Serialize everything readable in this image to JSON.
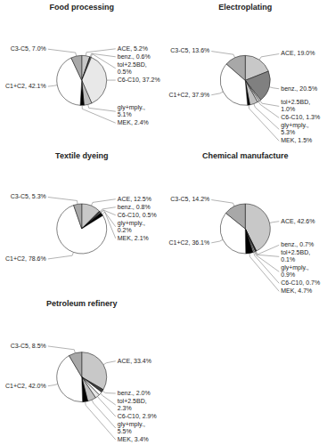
{
  "chart_data": [
    {
      "type": "pie",
      "title": "Food processing",
      "values": [
        5.2,
        0.6,
        0.5,
        37.2,
        5.1,
        2.4,
        42.1,
        7.0
      ],
      "value_labels": [
        "ACE, 5.2%",
        "benz., 0.6%",
        "tol+2.5BD,\n0.5%",
        "C6-C10, 37.2%",
        "gly+mply.,\n5.1%",
        "MEK, 2.4%",
        "C1+C2, 42.1%",
        "C3-C5, 7.0%"
      ],
      "colors": [
        "#c8c8c8",
        "#404040",
        "#ffffff",
        "#e8e8e8",
        "#c0c0c0",
        "#000000",
        "#ffffff",
        "#a8a8a8"
      ]
    },
    {
      "type": "pie",
      "title": "Electroplating",
      "values": [
        19.0,
        20.5,
        1.0,
        1.3,
        5.3,
        1.5,
        37.9,
        13.6
      ],
      "value_labels": [
        "ACE, 19.0%",
        "benz., 20.5%",
        "tol+2.5BD,\n1.0%",
        "C6-C10, 1.3%",
        "gly+mply.,\n5.3%",
        "MEK, 1.5%",
        "C1+C2, 37.9%",
        "C3-C5, 13.6%"
      ],
      "colors": [
        "#c8c8c8",
        "#808080",
        "#ffffff",
        "#e8e8e8",
        "#c0c0c0",
        "#000000",
        "#ffffff",
        "#a8a8a8"
      ]
    },
    {
      "type": "pie",
      "title": "Textile dyeing",
      "values": [
        12.5,
        0.8,
        0.5,
        0.2,
        2.1,
        78.6,
        5.3
      ],
      "value_labels": [
        "ACE, 12.5%",
        "benz., 0.8%",
        "C6-C10, 0.5%",
        "gly+mply.,\n0.2%",
        "MEK, 2.1%",
        "C1+C2, 78.6%",
        "C3-C5, 5.3%"
      ],
      "colors": [
        "#c8c8c8",
        "#404040",
        "#e8e8e8",
        "#c0c0c0",
        "#000000",
        "#ffffff",
        "#a8a8a8"
      ]
    },
    {
      "type": "pie",
      "title": "Chemical manufacture",
      "values": [
        42.6,
        0.7,
        0.1,
        0.9,
        0.7,
        4.7,
        36.1,
        14.2
      ],
      "value_labels": [
        "ACE, 42.6%",
        "benz., 0.7%",
        "tol+2.5BD,\n0.1%",
        "gly+mply.,\n0.9%",
        "C6-C10, 0.7%",
        "MEK, 4.7%",
        "C1+C2, 36.1%",
        "C3-C5, 14.2%"
      ],
      "colors": [
        "#c8c8c8",
        "#404040",
        "#ffffff",
        "#c0c0c0",
        "#e8e8e8",
        "#000000",
        "#ffffff",
        "#a8a8a8"
      ]
    },
    {
      "type": "pie",
      "title": "Petroleum refinery",
      "values": [
        33.4,
        2.0,
        2.3,
        2.9,
        5.5,
        3.4,
        42.0,
        8.5
      ],
      "value_labels": [
        "ACE, 33.4%",
        "benz., 2.0%",
        "tol+2.5BD,\n2.3%",
        "C6-C10, 2.9%",
        "gly+mply.,\n5.5%",
        "MEK, 3.4%",
        "C1+C2, 42.0%",
        "C3-C5, 8.5%"
      ],
      "colors": [
        "#c8c8c8",
        "#404040",
        "#ffffff",
        "#e8e8e8",
        "#c0c0c0",
        "#000000",
        "#ffffff",
        "#a8a8a8"
      ]
    }
  ]
}
